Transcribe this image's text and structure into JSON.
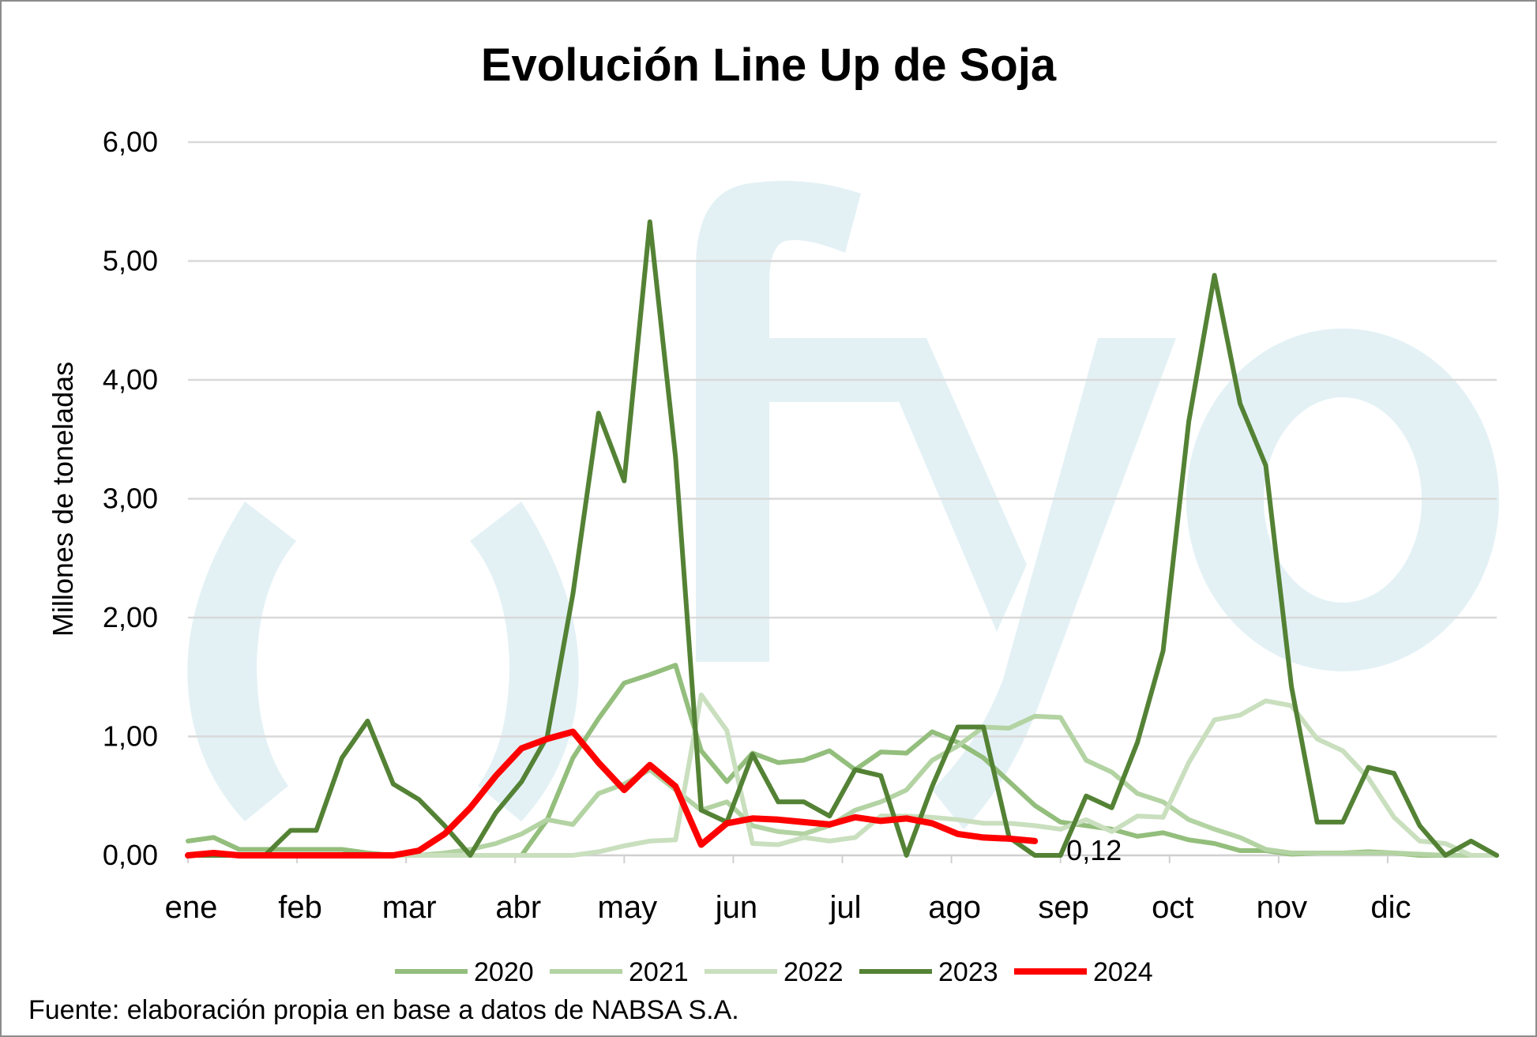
{
  "chart_data": {
    "type": "line",
    "title": "Evolución Line Up de Soja",
    "ylabel": "Millones de toneladas",
    "xlabel": "",
    "ylim": [
      0,
      6
    ],
    "yticks": [
      "0,00",
      "1,00",
      "2,00",
      "3,00",
      "4,00",
      "5,00",
      "6,00"
    ],
    "ytick_values": [
      0,
      1,
      2,
      3,
      4,
      5,
      6
    ],
    "x_unit": "week",
    "x_weeks": 52,
    "month_labels": [
      "ene",
      "feb",
      "mar",
      "abr",
      "may",
      "jun",
      "jul",
      "ago",
      "sep",
      "oct",
      "nov",
      "dic"
    ],
    "grid": true,
    "legend_position": "bottom",
    "series": [
      {
        "name": "2020",
        "color": "#93BE7C",
        "values": [
          0.12,
          0.15,
          0.05,
          0.05,
          0.05,
          0.05,
          0.05,
          0.02,
          0,
          0,
          0,
          0,
          0,
          0,
          0.3,
          0.82,
          1.15,
          1.45,
          1.52,
          1.6,
          0.88,
          0.62,
          0.86,
          0.78,
          0.8,
          0.88,
          0.72,
          0.87,
          0.86,
          1.04,
          0.95,
          0.82,
          0.62,
          0.42,
          0.28,
          0.25,
          0.22,
          0.16,
          0.19,
          0.13,
          0.1,
          0.04,
          0.04,
          0.01,
          0.02,
          0.02,
          0.03,
          0.02,
          0,
          0,
          0,
          0
        ]
      },
      {
        "name": "2021",
        "color": "#B3D3A3",
        "values": [
          0,
          0,
          0,
          0,
          0,
          0,
          0,
          0,
          0,
          0,
          0.02,
          0.05,
          0.1,
          0.18,
          0.3,
          0.26,
          0.52,
          0.6,
          0.72,
          0.55,
          0.38,
          0.45,
          0.25,
          0.2,
          0.18,
          0.25,
          0.38,
          0.45,
          0.55,
          0.8,
          0.92,
          1.08,
          1.07,
          1.17,
          1.16,
          0.8,
          0.7,
          0.52,
          0.45,
          0.3,
          0.22,
          0.15,
          0.05,
          0.02,
          0.02,
          0.02,
          0.02,
          0.02,
          0.01,
          0,
          0,
          0
        ]
      },
      {
        "name": "2022",
        "color": "#C9DFBE",
        "values": [
          0,
          0,
          0,
          0,
          0,
          0,
          0,
          0,
          0,
          0,
          0,
          0,
          0,
          0,
          0,
          0,
          0.03,
          0.08,
          0.12,
          0.13,
          1.35,
          1.05,
          0.1,
          0.09,
          0.15,
          0.12,
          0.15,
          0.33,
          0.33,
          0.32,
          0.3,
          0.27,
          0.27,
          0.25,
          0.22,
          0.3,
          0.2,
          0.33,
          0.32,
          0.78,
          1.14,
          1.18,
          1.3,
          1.26,
          0.98,
          0.88,
          0.65,
          0.32,
          0.12,
          0.1,
          0,
          0
        ]
      },
      {
        "name": "2023",
        "color": "#548235",
        "values": [
          0,
          0,
          0,
          0,
          0.21,
          0.21,
          0.82,
          1.13,
          0.6,
          0.47,
          0.25,
          0,
          0.36,
          0.62,
          1.0,
          2.2,
          3.72,
          3.15,
          5.33,
          3.35,
          0.38,
          0.28,
          0.85,
          0.45,
          0.45,
          0.33,
          0.72,
          0.67,
          0,
          0.58,
          1.08,
          1.08,
          0.15,
          0,
          0,
          0.5,
          0.4,
          0.95,
          1.72,
          3.65,
          4.88,
          3.8,
          3.28,
          1.42,
          0.28,
          0.28,
          0.74,
          0.69,
          0.25,
          0,
          0.12,
          0
        ]
      },
      {
        "name": "2024",
        "color": "#FF0000",
        "values": [
          0,
          0.02,
          0,
          0,
          0,
          0,
          0,
          0,
          0,
          0.04,
          0.18,
          0.4,
          0.67,
          0.9,
          0.98,
          1.04,
          0.78,
          0.55,
          0.76,
          0.58,
          0.09,
          0.27,
          0.31,
          0.3,
          0.28,
          0.26,
          0.32,
          0.29,
          0.31,
          0.27,
          0.18,
          0.15,
          0.14,
          0.12
        ]
      }
    ],
    "annotations": [
      {
        "series": "2024",
        "text": "0,12"
      }
    ],
    "source": "Fuente: elaboración propia en base a datos de NABSA S.A.",
    "watermark": "ofyo"
  }
}
